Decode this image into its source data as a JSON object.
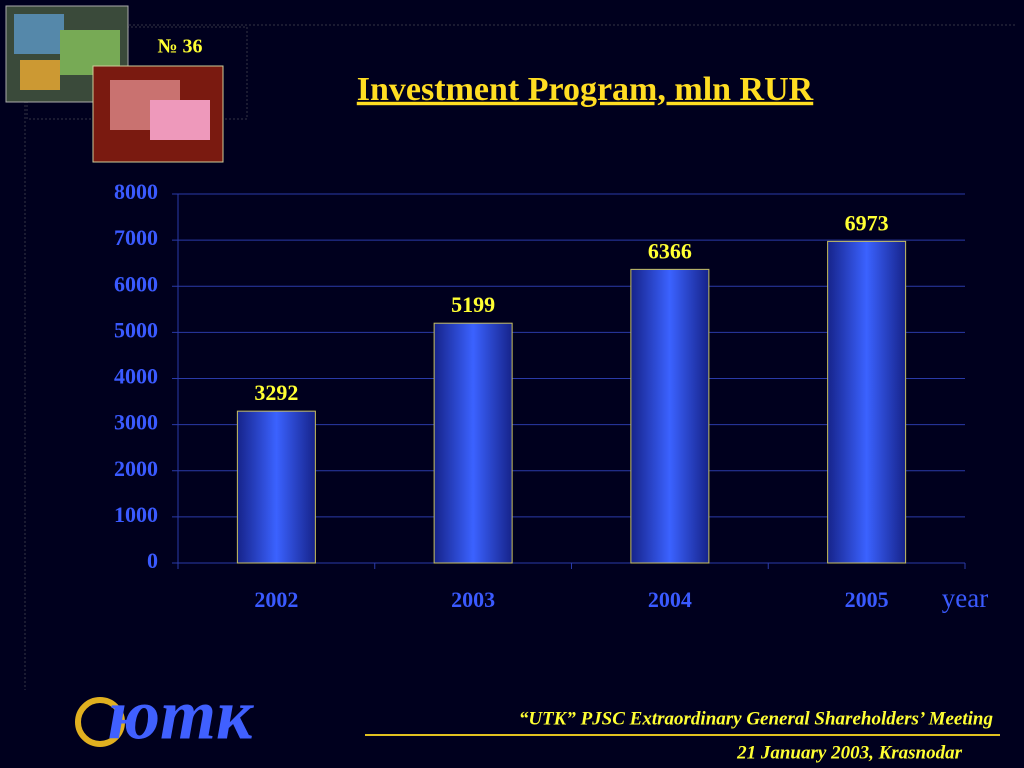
{
  "slide": {
    "number": "№ 36",
    "footer": "“UTK” PJSC Extraordinary General Shareholders’ Meeting",
    "date": "21 January 2003, Krasnodar",
    "logo": "ютк"
  },
  "chart_data": {
    "type": "bar",
    "title": "Investment Program, mln RUR",
    "categories": [
      "2002",
      "2003",
      "2004",
      "2005"
    ],
    "values": [
      3292,
      5199,
      6366,
      6973
    ],
    "x_label": "year",
    "color": "#2f4fe0",
    "ylim": [
      0,
      8000
    ],
    "yticks": [
      0,
      1000,
      2000,
      3000,
      4000,
      5000,
      6000,
      7000,
      8000
    ],
    "grid": true
  }
}
